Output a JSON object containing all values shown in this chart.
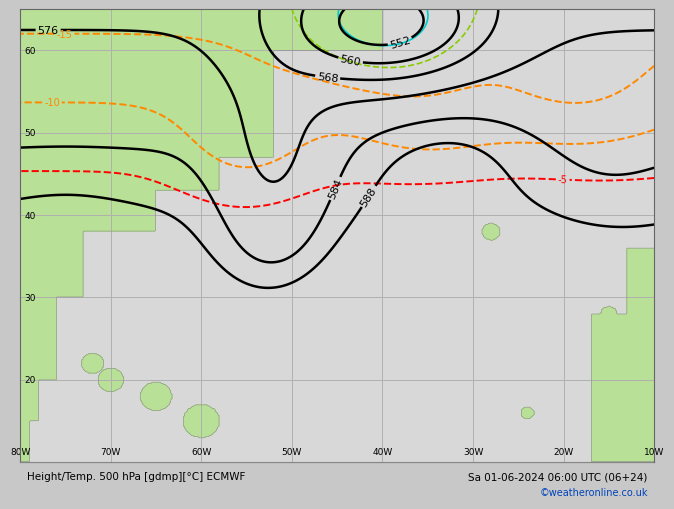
{
  "title_left": "Height/Temp. 500 hPa [gdmp][°C] ECMWF",
  "title_right": "Sa 01-06-2024 06:00 UTC (06+24)",
  "copyright": "©weatheronline.co.uk",
  "bg_color": "#c8c8c8",
  "ocean_color": "#d8d8d8",
  "land_color": "#b8e096",
  "grid_color": "#b0b0b0",
  "contour_color_height": "#000000",
  "contour_color_temp_orange": "#ff8800",
  "contour_color_temp_green": "#88cc00",
  "contour_color_temp_red": "#ff0000",
  "contour_color_temp_cyan": "#00cccc",
  "bottom_bar_color": "#c8c8c8",
  "lon_min": -80,
  "lon_max": -10,
  "lat_min": 10,
  "lat_max": 65,
  "xlabel_ticks": [
    -80,
    -70,
    -60,
    -50,
    -40,
    -30,
    -20,
    -10
  ],
  "xlabel_labels": [
    "80W",
    "70W",
    "60W",
    "50W",
    "40W",
    "30W",
    "20W",
    "10W"
  ],
  "ylabel_ticks": [
    20,
    30,
    40,
    50,
    60
  ],
  "ylabel_labels": [
    "20",
    "30",
    "40",
    "50",
    "60"
  ]
}
